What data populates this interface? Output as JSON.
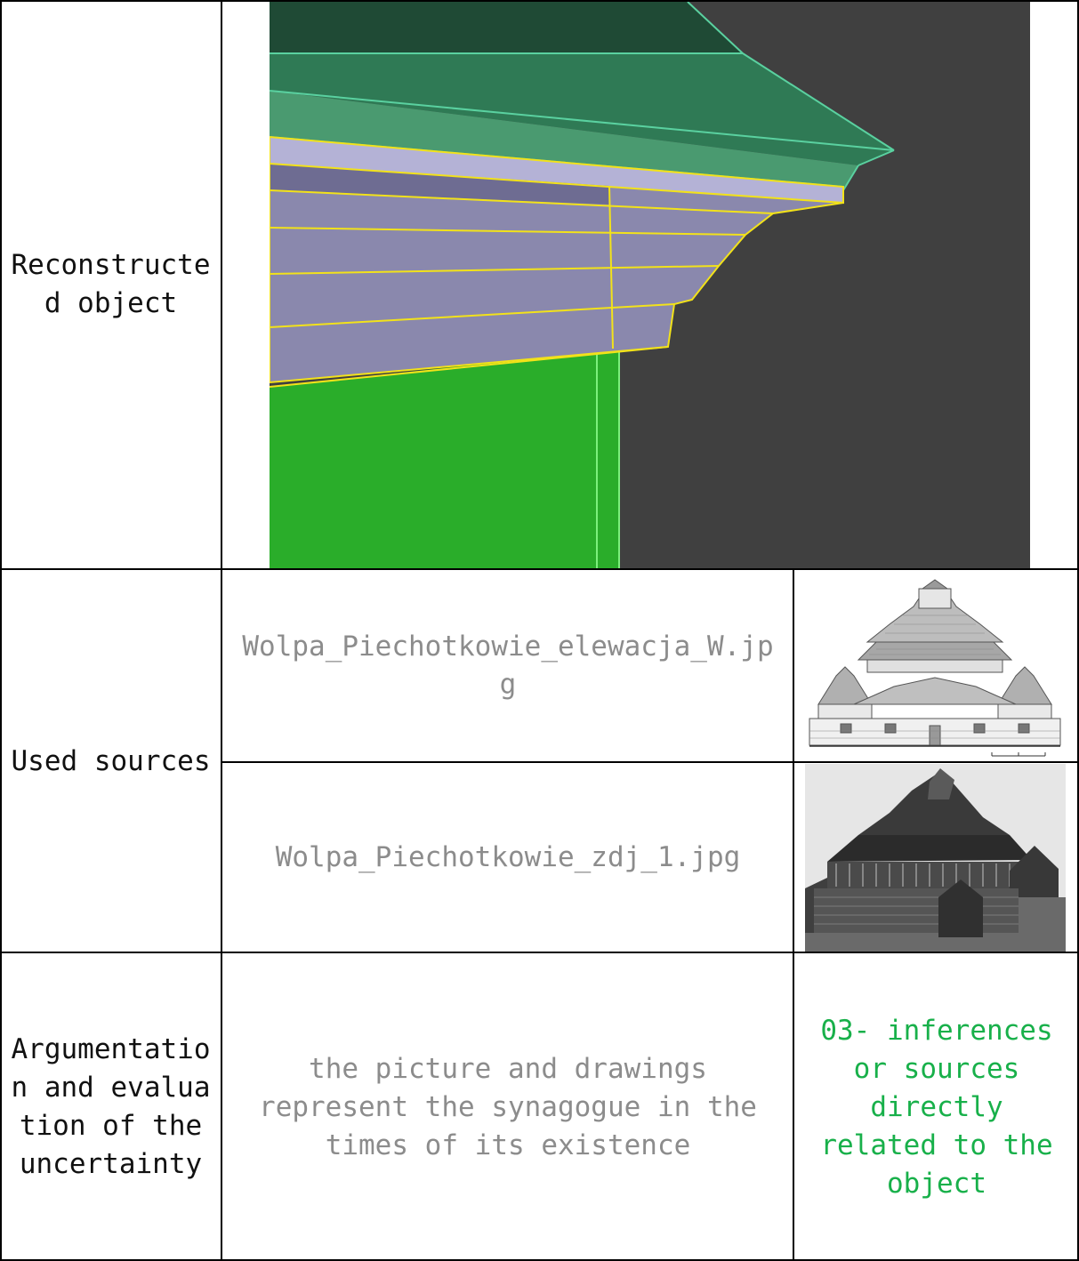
{
  "rows": {
    "reconstructed": {
      "label": "Reconstructed object"
    },
    "sources": {
      "label": "Used sources",
      "items": [
        {
          "filename": "Wolpa_Piechotkowie_elewacja_W.jpg",
          "thumb": "elevation-drawing"
        },
        {
          "filename": "Wolpa_Piechotkowie_zdj_1.jpg",
          "thumb": "historic-photo"
        }
      ]
    },
    "argumentation": {
      "label": "Argumentation and evaluation of the uncertainty",
      "text": "the picture and drawings represent the synagogue in the times of its existence",
      "category": "03- inferences or sources directly related to the object"
    }
  },
  "colors": {
    "roof_dark": "#1f4a35",
    "roof_mid": "#2f7a55",
    "roof_light": "#4a9a70",
    "roof_edge": "#5ad1a0",
    "cornice": "#8a88ad",
    "cornice_edge": "#f2e21a",
    "wall": "#2aad2a",
    "background": "#404040",
    "category_green": "#18b04a"
  }
}
